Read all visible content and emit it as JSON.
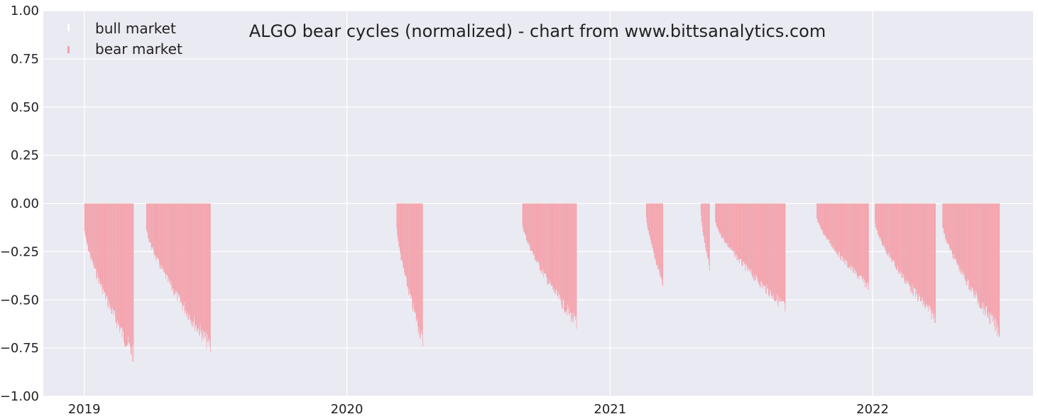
{
  "chart_data": {
    "type": "bar",
    "title": "ALGO bear cycles (normalized)  - chart from www.bittsanalytics.com",
    "xlabel": "",
    "ylabel": "",
    "ylim": [
      -1.0,
      1.0
    ],
    "xlim": [
      "2018-11-05",
      "2022-08-12"
    ],
    "grid": true,
    "legend_position": "top-left",
    "y_ticks": [
      "1.00",
      "0.75",
      "0.50",
      "0.25",
      "0.00",
      "−0.25",
      "−0.50",
      "−0.75",
      "−1.00"
    ],
    "x_ticks": [
      "2019",
      "2020",
      "2021",
      "2022"
    ],
    "series": [
      {
        "name": "bull market",
        "color": "#ffffff",
        "points": []
      },
      {
        "name": "bear market",
        "color": "#f4a0aa",
        "cycles": [
          {
            "start": "2019-01-01",
            "end": "2019-03-10",
            "min": -0.82
          },
          {
            "start": "2019-03-28",
            "end": "2019-06-25",
            "min": -0.77
          },
          {
            "start": "2020-03-10",
            "end": "2020-04-15",
            "min": -0.74
          },
          {
            "start": "2020-09-01",
            "end": "2020-11-15",
            "min": -0.65
          },
          {
            "start": "2021-02-20",
            "end": "2021-03-15",
            "min": -0.43
          },
          {
            "start": "2021-05-07",
            "end": "2021-05-19",
            "min": -0.35
          },
          {
            "start": "2021-05-27",
            "end": "2021-09-01",
            "min": -0.56
          },
          {
            "start": "2021-10-15",
            "end": "2021-12-26",
            "min": -0.45
          },
          {
            "start": "2022-01-04",
            "end": "2022-03-29",
            "min": -0.62
          },
          {
            "start": "2022-04-08",
            "end": "2022-06-26",
            "min": -0.69
          }
        ]
      }
    ]
  }
}
